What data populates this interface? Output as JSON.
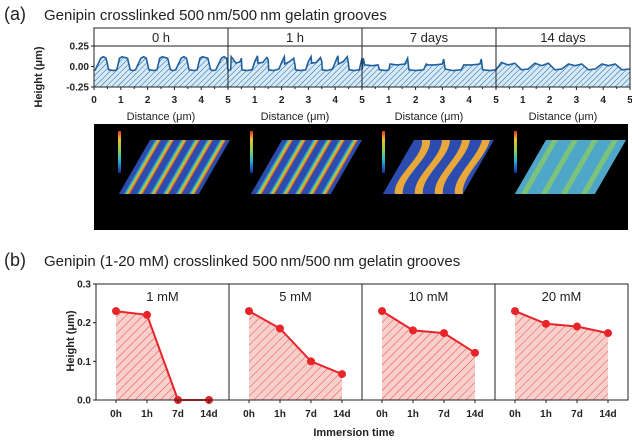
{
  "panel_a": {
    "label": "(a)",
    "title": "Genipin crosslinked 500 nm/500 nm gelatin grooves",
    "ylabel": "Height (μm)",
    "xlabel": "Distance (μm)"
  },
  "panel_b": {
    "label": "(b)",
    "title": "Genipin (1-20 mM) crosslinked 500 nm/500 nm gelatin grooves",
    "ylabel": "Height (μm)",
    "xlabel": "Immersion time"
  },
  "colors": {
    "profile_line": "#1f5f9e",
    "profile_fill": "#d6ebf7",
    "bar_line": "#e8242a",
    "bar_fill": "#f7d0cc"
  },
  "chart_data": [
    {
      "type": "area",
      "title": "0 h",
      "xlabel": "Distance (μm)",
      "ylabel": "Height (μm)",
      "xlim": [
        0,
        5
      ],
      "ylim": [
        -0.25,
        0.25
      ],
      "xticks": [
        0,
        1,
        2,
        3,
        4,
        5
      ],
      "yticks": [
        0.25,
        0.0,
        -0.25
      ],
      "ytick_labels": [
        "0.25",
        "0.00",
        "-0.25"
      ],
      "x": [
        0,
        0.05,
        0.25,
        0.35,
        0.45,
        0.55,
        0.75,
        0.85,
        0.95,
        1.05,
        1.25,
        1.35,
        1.45,
        1.55,
        1.75,
        1.85,
        1.95,
        2.05,
        2.25,
        2.35,
        2.45,
        2.55,
        2.75,
        2.85,
        2.95,
        3.05,
        3.25,
        3.35,
        3.45,
        3.55,
        3.75,
        3.85,
        3.95,
        4.05,
        4.25,
        4.35,
        4.45,
        4.55,
        4.75,
        4.85,
        4.95,
        5.0
      ],
      "y": [
        -0.05,
        -0.04,
        0.1,
        0.12,
        0.1,
        -0.04,
        -0.05,
        -0.04,
        0.1,
        0.12,
        0.1,
        -0.04,
        -0.05,
        -0.04,
        0.1,
        0.12,
        0.1,
        -0.04,
        -0.05,
        -0.04,
        0.1,
        0.12,
        0.1,
        -0.04,
        -0.05,
        -0.04,
        0.1,
        0.12,
        0.1,
        -0.04,
        -0.05,
        -0.04,
        0.1,
        0.12,
        0.1,
        -0.04,
        -0.05,
        -0.04,
        0.1,
        0.12,
        0.1,
        -0.04
      ]
    },
    {
      "type": "area",
      "title": "1 h",
      "xlabel": "Distance (μm)",
      "xlim": [
        0,
        5
      ],
      "ylim": [
        -0.25,
        0.25
      ],
      "xticks": [
        0,
        1,
        2,
        3,
        4,
        5
      ],
      "x": [
        0,
        0.1,
        0.12,
        0.3,
        0.45,
        0.5,
        0.52,
        0.7,
        0.9,
        1.0,
        1.1,
        1.12,
        1.3,
        1.45,
        1.5,
        1.52,
        1.7,
        1.9,
        2.0,
        2.1,
        2.12,
        2.3,
        2.45,
        2.5,
        2.52,
        2.7,
        2.9,
        3.0,
        3.1,
        3.12,
        3.3,
        3.45,
        3.5,
        3.52,
        3.7,
        3.9,
        4.0,
        4.1,
        4.12,
        4.3,
        4.45,
        4.5,
        4.52,
        4.7,
        4.9,
        5.0
      ],
      "y": [
        -0.05,
        -0.04,
        0.12,
        0.04,
        0.06,
        0.1,
        -0.04,
        -0.05,
        -0.04,
        0.06,
        0.13,
        0.04,
        0.05,
        0.11,
        0.08,
        -0.04,
        -0.05,
        -0.03,
        0.05,
        0.12,
        0.03,
        0.06,
        0.1,
        0.02,
        -0.04,
        -0.05,
        -0.04,
        0.06,
        0.12,
        0.04,
        0.05,
        0.11,
        0.06,
        -0.04,
        -0.05,
        -0.03,
        0.05,
        0.13,
        0.03,
        0.06,
        0.12,
        0.02,
        -0.04,
        -0.05,
        -0.04,
        0.1
      ]
    },
    {
      "type": "area",
      "title": "7 days",
      "xlabel": "Distance (μm)",
      "xlim": [
        0,
        5
      ],
      "ylim": [
        -0.25,
        0.25
      ],
      "xticks": [
        0,
        1,
        2,
        3,
        4,
        5
      ],
      "x": [
        0,
        0.05,
        0.1,
        0.4,
        0.6,
        0.65,
        0.9,
        1.0,
        1.05,
        1.3,
        1.6,
        1.7,
        1.75,
        2.0,
        2.3,
        2.4,
        2.45,
        2.7,
        3.0,
        3.05,
        3.1,
        3.4,
        3.7,
        3.8,
        3.85,
        4.1,
        4.4,
        4.45,
        4.5,
        4.8,
        5.0
      ],
      "y": [
        -0.04,
        0.1,
        0.02,
        0.01,
        0.02,
        -0.04,
        -0.05,
        -0.04,
        0.03,
        0.02,
        0.03,
        0.1,
        -0.04,
        -0.05,
        -0.04,
        0.03,
        0.02,
        0.02,
        0.03,
        0.09,
        -0.03,
        -0.05,
        -0.04,
        0.02,
        0.02,
        0.02,
        0.03,
        0.09,
        -0.04,
        -0.05,
        -0.04
      ]
    },
    {
      "type": "area",
      "title": "14 days",
      "xlabel": "Distance (μm)",
      "xlim": [
        0,
        5
      ],
      "ylim": [
        -0.25,
        0.25
      ],
      "xticks": [
        0,
        1,
        2,
        3,
        4,
        5
      ],
      "x": [
        0,
        0.2,
        0.45,
        0.7,
        0.95,
        1.2,
        1.45,
        1.7,
        1.95,
        2.2,
        2.45,
        2.7,
        2.95,
        3.2,
        3.45,
        3.7,
        3.95,
        4.2,
        4.45,
        4.7,
        5.0
      ],
      "y": [
        -0.04,
        0.05,
        0.02,
        0.04,
        -0.04,
        -0.03,
        0.04,
        0.01,
        0.04,
        -0.04,
        -0.03,
        0.03,
        0.01,
        0.03,
        -0.04,
        -0.03,
        0.03,
        0.01,
        0.03,
        -0.04,
        -0.03
      ]
    },
    {
      "type": "line",
      "title": "1 mM",
      "xlabel": "Immersion time",
      "ylabel": "Height (μm)",
      "categories": [
        "0h",
        "1h",
        "7d",
        "14d"
      ],
      "values": [
        0.23,
        0.22,
        0.0,
        0.0
      ],
      "ylim": [
        0.0,
        0.3
      ],
      "yticks": [
        0.0,
        0.1,
        0.2,
        0.3
      ],
      "ytick_labels": [
        "0.0",
        "0.1",
        "0.2",
        "0.3"
      ]
    },
    {
      "type": "line",
      "title": "5 mM",
      "xlabel": "Immersion time",
      "categories": [
        "0h",
        "1h",
        "7d",
        "14d"
      ],
      "values": [
        0.23,
        0.185,
        0.1,
        0.067
      ],
      "ylim": [
        0.0,
        0.3
      ]
    },
    {
      "type": "line",
      "title": "10 mM",
      "xlabel": "Immersion time",
      "categories": [
        "0h",
        "1h",
        "7d",
        "14d"
      ],
      "values": [
        0.23,
        0.18,
        0.173,
        0.122
      ],
      "ylim": [
        0.0,
        0.3
      ]
    },
    {
      "type": "line",
      "title": "20 mM",
      "xlabel": "Immersion time",
      "categories": [
        "0h",
        "1h",
        "7d",
        "14d"
      ],
      "values": [
        0.23,
        0.197,
        0.19,
        0.173
      ],
      "ylim": [
        0.0,
        0.3
      ]
    }
  ]
}
